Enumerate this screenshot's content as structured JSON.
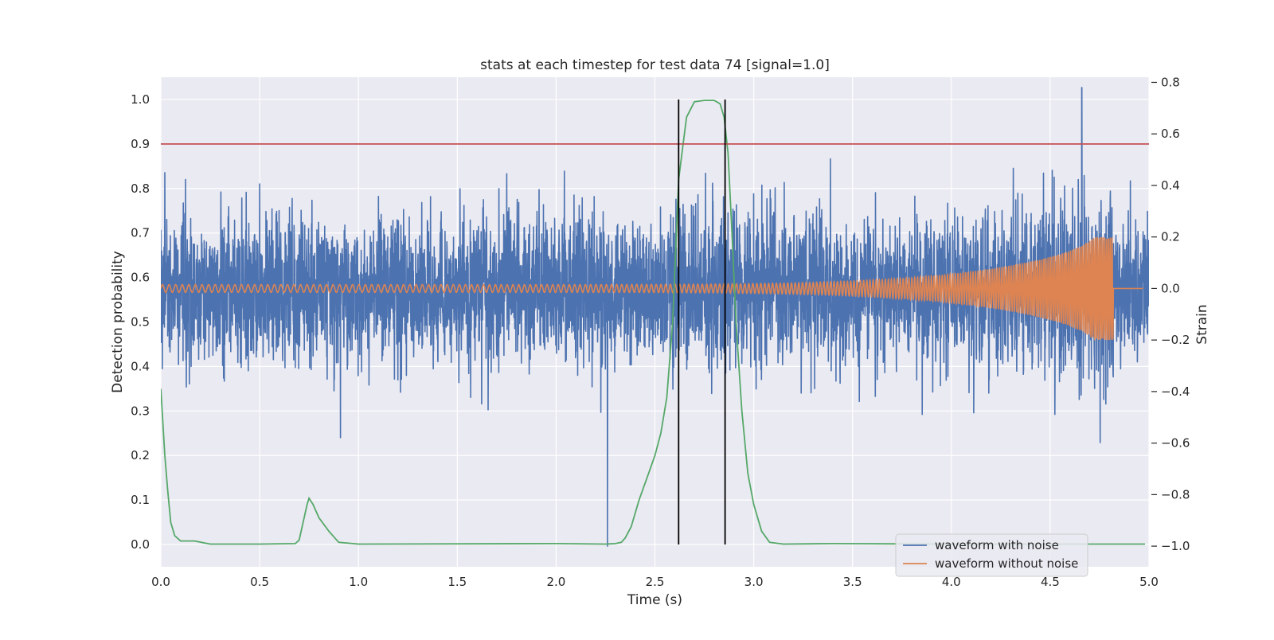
{
  "chart_data": {
    "type": "line",
    "title": "stats at each timestep for test data 74 [signal=1.0]",
    "xlabel": "Time (s)",
    "ylabel_left": "Detection probability",
    "ylabel_right": "Strain",
    "xlim": [
      0.0,
      5.0
    ],
    "ylim_left": [
      -0.05,
      1.05
    ],
    "ylim_right": [
      -1.08,
      0.82
    ],
    "grid": true,
    "x_ticks": [
      "0.0",
      "0.5",
      "1.0",
      "1.5",
      "2.0",
      "2.5",
      "3.0",
      "3.5",
      "4.0",
      "4.5",
      "5.0"
    ],
    "y_left_ticks": [
      "0.0",
      "0.1",
      "0.2",
      "0.3",
      "0.4",
      "0.5",
      "0.6",
      "0.7",
      "0.8",
      "0.9",
      "1.0"
    ],
    "y_right_ticks": [
      "−1.0",
      "−0.8",
      "−0.6",
      "−0.4",
      "−0.2",
      "0.0",
      "0.2",
      "0.4",
      "0.6",
      "0.8"
    ],
    "threshold": 0.9,
    "vertical_markers": [
      2.62,
      2.855
    ],
    "colors": {
      "plot_bg": "#eaeaf2",
      "grid": "#ffffff",
      "noisy": "#4c72b0",
      "clean": "#dd8452",
      "probability": "#55a868",
      "threshold": "#c44e52",
      "markers": "#000000"
    },
    "series": [
      {
        "name": "waveform with noise",
        "axis": "right",
        "noise_rms": 0.14,
        "min": -1.0,
        "max": 0.78
      },
      {
        "name": "waveform without noise",
        "axis": "right",
        "type": "chirp",
        "amplitude_start": 0.015,
        "amplitude_peak": 0.2,
        "merger_time": 4.82,
        "freq_start_hz": 30,
        "freq_end_hz": 130
      },
      {
        "axis": "left",
        "points": [
          [
            0.0,
            0.35
          ],
          [
            0.02,
            0.2
          ],
          [
            0.035,
            0.12
          ],
          [
            0.05,
            0.05
          ],
          [
            0.07,
            0.02
          ],
          [
            0.1,
            0.008
          ],
          [
            0.17,
            0.008
          ],
          [
            0.25,
            0.001
          ],
          [
            0.5,
            0.001
          ],
          [
            0.68,
            0.002
          ],
          [
            0.7,
            0.01
          ],
          [
            0.72,
            0.05
          ],
          [
            0.74,
            0.09
          ],
          [
            0.75,
            0.104
          ],
          [
            0.77,
            0.09
          ],
          [
            0.8,
            0.06
          ],
          [
            0.85,
            0.03
          ],
          [
            0.9,
            0.005
          ],
          [
            1.0,
            0.001
          ],
          [
            2.0,
            0.002
          ],
          [
            2.25,
            0.001
          ],
          [
            2.3,
            0.002
          ],
          [
            2.33,
            0.005
          ],
          [
            2.35,
            0.015
          ],
          [
            2.38,
            0.04
          ],
          [
            2.42,
            0.1
          ],
          [
            2.46,
            0.15
          ],
          [
            2.5,
            0.2
          ],
          [
            2.53,
            0.25
          ],
          [
            2.56,
            0.33
          ],
          [
            2.59,
            0.5
          ],
          [
            2.62,
            0.82
          ],
          [
            2.66,
            0.96
          ],
          [
            2.7,
            0.995
          ],
          [
            2.75,
            0.998
          ],
          [
            2.8,
            0.998
          ],
          [
            2.83,
            0.99
          ],
          [
            2.85,
            0.96
          ],
          [
            2.87,
            0.88
          ],
          [
            2.89,
            0.7
          ],
          [
            2.91,
            0.5
          ],
          [
            2.94,
            0.3
          ],
          [
            2.97,
            0.16
          ],
          [
            3.0,
            0.09
          ],
          [
            3.04,
            0.03
          ],
          [
            3.08,
            0.005
          ],
          [
            3.15,
            0.001
          ],
          [
            3.4,
            0.002
          ],
          [
            4.0,
            0.001
          ],
          [
            4.98,
            0.001
          ]
        ]
      }
    ]
  }
}
